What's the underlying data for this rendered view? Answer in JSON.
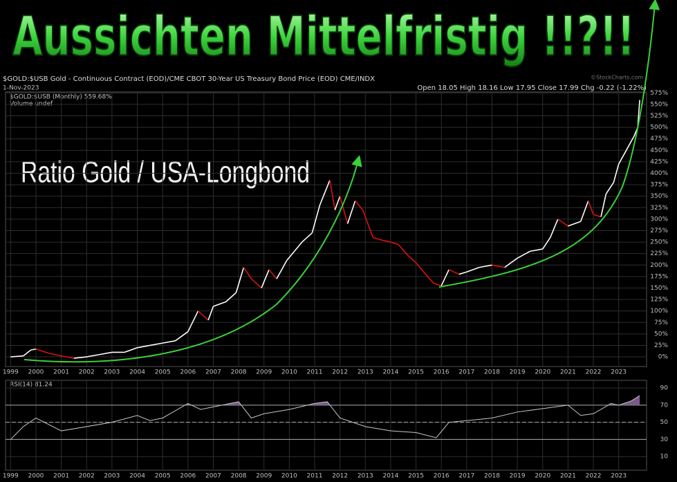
{
  "chart_data": [
    {
      "type": "line",
      "title": "Aussichten Mittelfristig !!?!!",
      "header": "$GOLD:$USB Gold - Continuous Contract (EOD)/CME CBOT 30-Year US Treasury Bond Price (EOD) CME/INDX",
      "date": "1-Nov-2023",
      "quote": "Open 18.05  High 18.16  Low 17.95  Close 17.99  Chg -0.22 (-1.22%)",
      "source": "©StockCharts.com",
      "annotation": "Ratio Gold / USA-Longbond",
      "volume_note": "Volume undef",
      "x": [
        1999.0,
        1999.5,
        1999.8,
        2000.0,
        2000.5,
        2001.0,
        2001.5,
        2002.0,
        2002.5,
        2003.0,
        2003.5,
        2004.0,
        2004.5,
        2005.0,
        2005.5,
        2006.0,
        2006.4,
        2006.8,
        2007.0,
        2007.5,
        2007.9,
        2008.2,
        2008.5,
        2008.9,
        2009.2,
        2009.5,
        2009.9,
        2010.2,
        2010.5,
        2010.9,
        2011.2,
        2011.6,
        2011.8,
        2012.0,
        2012.3,
        2012.6,
        2012.9,
        2013.3,
        2013.6,
        2014.0,
        2014.3,
        2014.7,
        2015.0,
        2015.3,
        2015.7,
        2016.0,
        2016.3,
        2016.7,
        2017.0,
        2017.5,
        2018.0,
        2018.5,
        2019.0,
        2019.5,
        2020.0,
        2020.3,
        2020.6,
        2021.0,
        2021.5,
        2021.8,
        2022.0,
        2022.3,
        2022.5,
        2022.8,
        2023.0,
        2023.3,
        2023.6,
        2023.75,
        2023.83
      ],
      "series": [
        {
          "name": "$GOLD:$USB (Monthly) 559.68%",
          "color": "#ffffff",
          "down_color": "#dd1111",
          "values": [
            0,
            2,
            15,
            17,
            8,
            2,
            -3,
            0,
            5,
            10,
            10,
            20,
            25,
            30,
            35,
            55,
            100,
            80,
            110,
            120,
            140,
            195,
            170,
            150,
            190,
            170,
            210,
            230,
            250,
            270,
            330,
            385,
            320,
            350,
            290,
            340,
            320,
            260,
            255,
            250,
            245,
            220,
            205,
            185,
            160,
            155,
            190,
            180,
            185,
            195,
            200,
            195,
            215,
            230,
            235,
            260,
            300,
            285,
            295,
            340,
            310,
            305,
            355,
            380,
            420,
            450,
            480,
            500,
            559.68
          ]
        }
      ],
      "xlim": [
        1998.8,
        2024.1
      ],
      "xticks": [
        1999,
        2000,
        2001,
        2002,
        2003,
        2004,
        2005,
        2006,
        2007,
        2008,
        2009,
        2010,
        2011,
        2012,
        2013,
        2014,
        2015,
        2016,
        2017,
        2018,
        2019,
        2020,
        2021,
        2022,
        2023
      ],
      "ylim": [
        -21,
        577
      ],
      "yticks": [
        {
          "value": 0,
          "label": "0%"
        },
        {
          "value": 25,
          "label": "25%"
        },
        {
          "value": 50,
          "label": "50%"
        },
        {
          "value": 75,
          "label": "75%"
        },
        {
          "value": 100,
          "label": "100%"
        },
        {
          "value": 125,
          "label": "125%"
        },
        {
          "value": 150,
          "label": "150%"
        },
        {
          "value": 175,
          "label": "175%"
        },
        {
          "value": 200,
          "label": "200%"
        },
        {
          "value": 225,
          "label": "225%"
        },
        {
          "value": 250,
          "label": "250%"
        },
        {
          "value": 275,
          "label": "275%"
        },
        {
          "value": 300,
          "label": "300%"
        },
        {
          "value": 325,
          "label": "325%"
        },
        {
          "value": 350,
          "label": "350%"
        },
        {
          "value": 375,
          "label": "375%"
        },
        {
          "value": 400,
          "label": "400%"
        },
        {
          "value": 425,
          "label": "425%"
        },
        {
          "value": 450,
          "label": "450%"
        },
        {
          "value": 475,
          "label": "475%"
        },
        {
          "value": 500,
          "label": "500%"
        },
        {
          "value": 525,
          "label": "525%"
        },
        {
          "value": 550,
          "label": "550%"
        },
        {
          "value": 575,
          "label": "575%"
        }
      ],
      "grid": true
    },
    {
      "type": "line",
      "x": [
        1999.0,
        1999.5,
        2000.0,
        2001.0,
        2002.0,
        2003.0,
        2004.0,
        2004.5,
        2005.0,
        2006.0,
        2006.5,
        2007.0,
        2008.0,
        2008.5,
        2009.0,
        2010.0,
        2011.0,
        2011.5,
        2012.0,
        2013.0,
        2014.0,
        2015.0,
        2015.8,
        2016.3,
        2017.0,
        2018.0,
        2019.0,
        2020.0,
        2021.0,
        2021.5,
        2022.0,
        2022.7,
        2023.0,
        2023.5,
        2023.83
      ],
      "series": [
        {
          "name": "RSI(14) 81.24",
          "color": "#c8c8c8",
          "fill_color": "#7a5a8a",
          "values": [
            30,
            45,
            55,
            40,
            45,
            50,
            58,
            52,
            55,
            72,
            65,
            68,
            74,
            55,
            60,
            65,
            72,
            74,
            55,
            45,
            40,
            38,
            32,
            50,
            52,
            55,
            62,
            66,
            70,
            58,
            60,
            72,
            70,
            75,
            81.24
          ]
        }
      ],
      "xlim": [
        1998.8,
        2024.1
      ],
      "xticks": [
        1999,
        2000,
        2001,
        2002,
        2003,
        2004,
        2005,
        2006,
        2007,
        2008,
        2009,
        2010,
        2011,
        2012,
        2013,
        2014,
        2015,
        2016,
        2017,
        2018,
        2019,
        2020,
        2021,
        2022,
        2023
      ],
      "ylim": [
        -6,
        99
      ],
      "yticks": [
        10,
        30,
        50,
        70,
        90
      ],
      "levels": [
        30,
        50,
        70
      ],
      "grid": true
    }
  ]
}
